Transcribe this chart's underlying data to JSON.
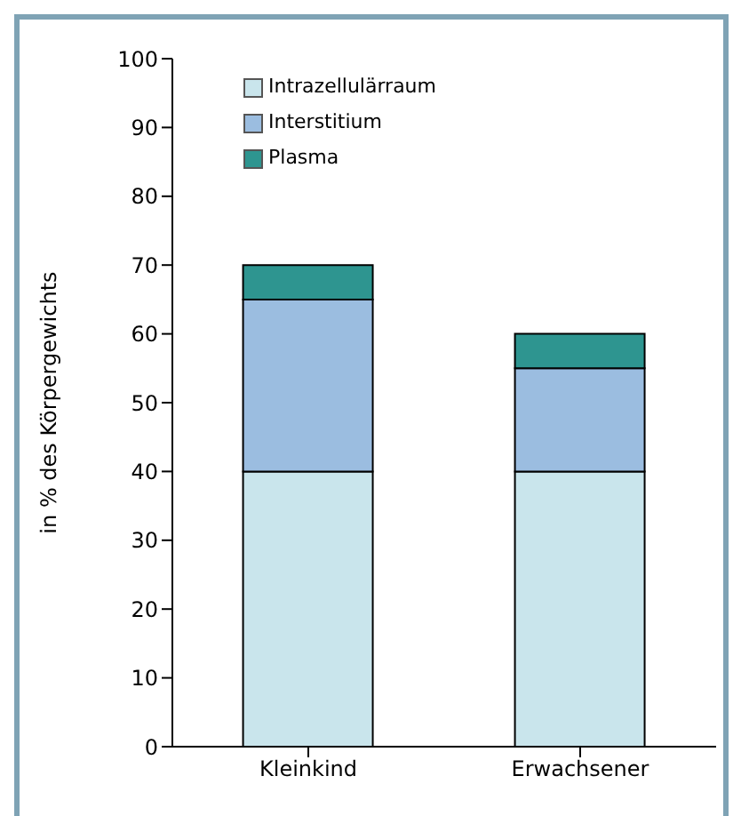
{
  "chart_data": {
    "type": "bar",
    "ylabel": "in % des Körpergewichts",
    "categories": [
      "Kleinkind",
      "Erwachsener"
    ],
    "stacked": true,
    "series": [
      {
        "name": "Intrazellulärraum",
        "color": "#c9e5ec",
        "values": [
          40,
          40
        ]
      },
      {
        "name": "Interstitium",
        "color": "#9bbde0",
        "values": [
          25,
          15
        ]
      },
      {
        "name": "Plasma",
        "color": "#2e9590",
        "values": [
          5,
          5
        ]
      }
    ],
    "ylim": [
      0,
      100
    ],
    "yticks": [
      0,
      10,
      20,
      30,
      40,
      50,
      60,
      70,
      80,
      90,
      100
    ],
    "grid": false,
    "legend": "top left"
  }
}
